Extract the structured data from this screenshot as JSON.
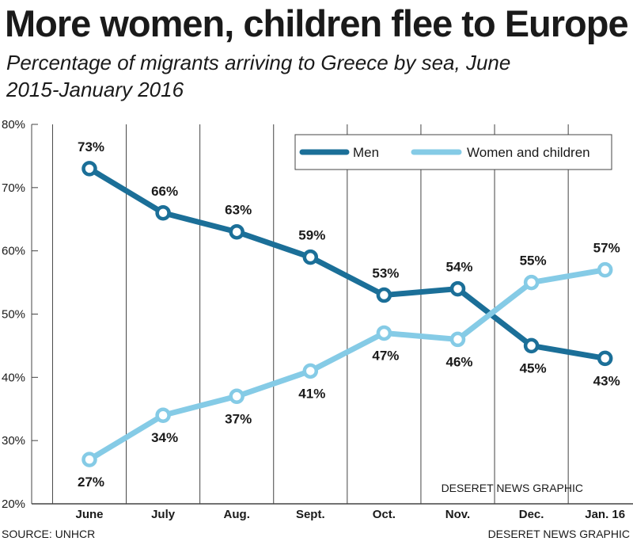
{
  "header": {
    "title": "More women, children flee to Europe",
    "subtitle": "Percentage of migrants arriving to Greece by sea, June 2015-January 2016"
  },
  "footer": {
    "source": "SOURCE: UNHCR",
    "credit": "DESERET NEWS GRAPHIC"
  },
  "watermark": "DESERET NEWS GRAPHIC",
  "colors": {
    "men": "#1b6f98",
    "women_children": "#85cbe6",
    "grid": "#444444",
    "legend_bg": "#ffffff"
  },
  "chart_data": {
    "type": "line",
    "title": "More women, children flee to Europe",
    "subtitle": "Percentage of migrants arriving to Greece by sea, June 2015-January 2016",
    "categories": [
      "June",
      "July",
      "Aug.",
      "Sept.",
      "Oct.",
      "Nov.",
      "Dec.",
      "Jan. 16"
    ],
    "yticks": [
      "20%",
      "30%",
      "40%",
      "50%",
      "60%",
      "70%",
      "80%"
    ],
    "ylim": [
      20,
      80
    ],
    "grid": "vertical",
    "legend": "top-right",
    "series": [
      {
        "name": "Men",
        "values": [
          73,
          66,
          63,
          59,
          53,
          54,
          45,
          43
        ],
        "labels": [
          "73%",
          "66%",
          "63%",
          "59%",
          "53%",
          "54%",
          "45%",
          "43%"
        ]
      },
      {
        "name": "Women and children",
        "values": [
          27,
          34,
          37,
          41,
          47,
          46,
          55,
          57
        ],
        "labels": [
          "27%",
          "34%",
          "37%",
          "41%",
          "47%",
          "46%",
          "55%",
          "57%"
        ]
      }
    ]
  }
}
